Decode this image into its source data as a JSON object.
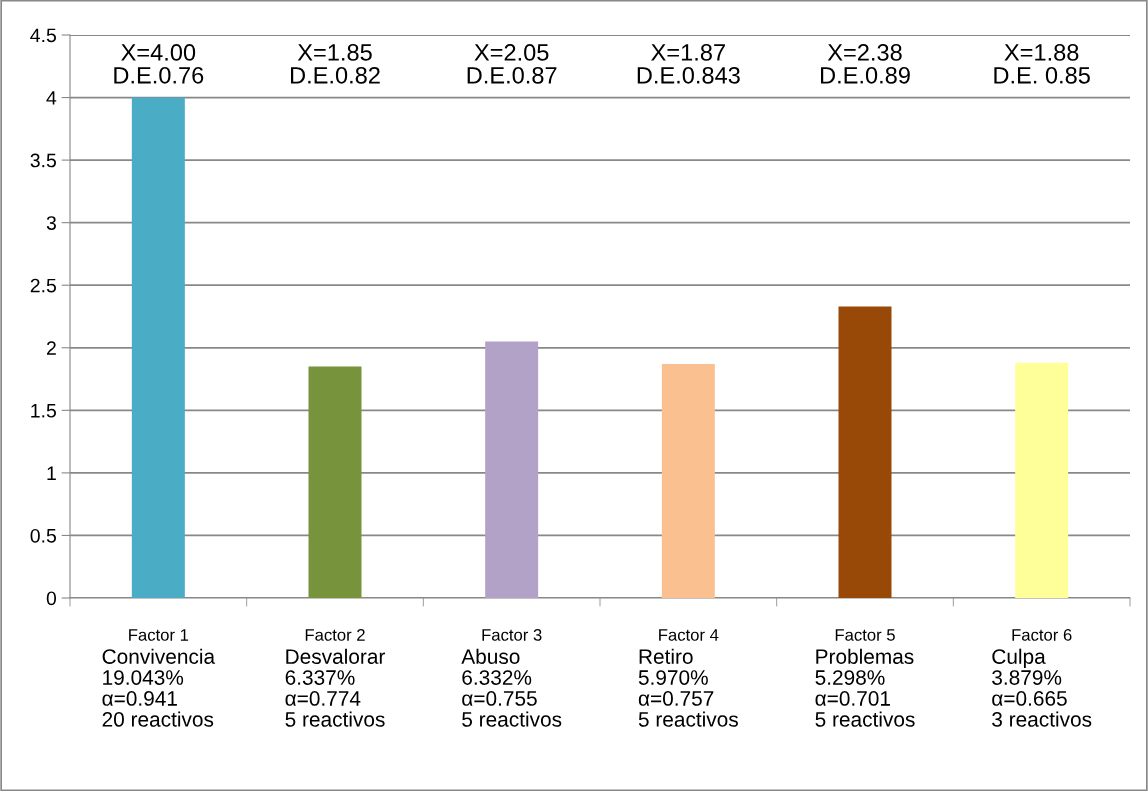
{
  "chart_data": {
    "type": "bar",
    "categories": [
      "Factor 1",
      "Factor 2",
      "Factor 3",
      "Factor 4",
      "Factor 5",
      "Factor 6"
    ],
    "values": [
      4.0,
      1.85,
      2.05,
      1.87,
      2.33,
      1.88
    ],
    "colors": [
      "#4bacc6",
      "#77933c",
      "#b3a2c7",
      "#fac090",
      "#984807",
      "#ffff99"
    ],
    "ylim": [
      0,
      4.5
    ],
    "yticks": [
      0,
      0.5,
      1,
      1.5,
      2,
      2.5,
      3,
      3.5,
      4,
      4.5
    ],
    "grid": "y",
    "legend": false,
    "annotations": [
      "X=4.00\nD.E.0.76",
      "X=1.85\nD.E.0.82",
      "X=2.05\nD.E.0.87",
      "X=1.87\nD.E.0.843",
      "X=2.38\nD.E.0.89",
      "X=1.88\nD.E. 0.85",
      "Convivencia\n19.043%\nα=0.941\n20 reactivos",
      "Desvalorar\n6.337%\nα=0.774\n5 reactivos",
      "Abuso\n6.332%\nα=0.755\n5 reactivos",
      "Retiro\n5.970%\nα=0.757\n5 reactivos",
      "Problemas\n5.298%\nα=0.701\n5 reactivos",
      "Culpa\n3.879%\nα=0.665\n3 reactivos"
    ]
  }
}
